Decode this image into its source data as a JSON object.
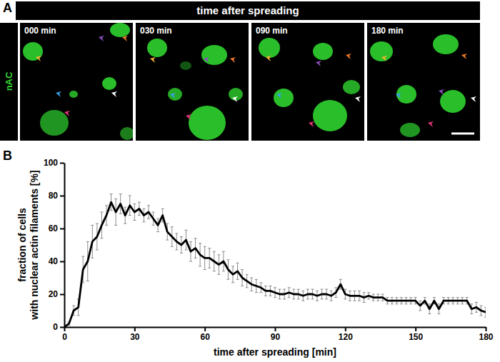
{
  "figure": {
    "panel_a": {
      "label": "A",
      "header": "time after spreading",
      "channel": "nAC",
      "frames": [
        "000 min",
        "030 min",
        "090 min",
        "180 min"
      ]
    },
    "panel_b": {
      "label": "B"
    }
  },
  "chart_data": {
    "type": "line",
    "x_label": "time after spreading [min]",
    "y_label": "fraction of cells\nwith nuclear actin filaments [%]",
    "x": [
      0,
      2,
      4,
      6,
      8,
      10,
      12,
      14,
      16,
      18,
      20,
      22,
      24,
      26,
      28,
      30,
      32,
      34,
      36,
      38,
      40,
      42,
      44,
      46,
      48,
      50,
      52,
      54,
      56,
      58,
      60,
      62,
      64,
      66,
      68,
      70,
      72,
      74,
      76,
      78,
      80,
      82,
      84,
      86,
      88,
      90,
      92,
      94,
      96,
      98,
      100,
      102,
      104,
      106,
      108,
      110,
      112,
      114,
      116,
      118,
      120,
      122,
      124,
      126,
      128,
      130,
      132,
      134,
      136,
      138,
      140,
      142,
      144,
      146,
      148,
      150,
      152,
      154,
      156,
      158,
      160,
      162,
      164,
      166,
      168,
      170,
      172,
      174,
      176,
      178,
      180
    ],
    "xlim": [
      0,
      180
    ],
    "xticks": [
      0,
      30,
      60,
      90,
      120,
      150,
      180
    ],
    "ylim": [
      0,
      100
    ],
    "yticks": [
      0,
      20,
      40,
      60,
      80,
      100
    ],
    "series": [
      {
        "color": "#000000",
        "values": [
          0,
          2,
          10,
          12,
          35,
          40,
          52,
          55,
          62,
          68,
          76,
          70,
          75,
          68,
          74,
          70,
          72,
          68,
          70,
          66,
          62,
          68,
          58,
          55,
          52,
          50,
          53,
          46,
          48,
          44,
          42,
          42,
          40,
          38,
          40,
          35,
          32,
          34,
          30,
          28,
          26,
          25,
          24,
          22,
          22,
          21,
          20,
          20,
          21,
          20,
          20,
          19,
          20,
          20,
          19,
          20,
          20,
          19,
          21,
          26,
          20,
          19,
          19,
          19,
          18,
          19,
          18,
          18,
          18,
          16,
          16,
          16,
          16,
          16,
          16,
          16,
          13,
          16,
          11,
          16,
          11,
          16,
          16,
          16,
          16,
          16,
          16,
          11,
          12,
          10,
          9
        ],
        "errors": [
          0,
          1,
          3,
          5,
          8,
          12,
          10,
          8,
          8,
          6,
          5,
          8,
          6,
          5,
          6,
          5,
          4,
          4,
          4,
          4,
          4,
          4,
          5,
          6,
          5,
          5,
          6,
          6,
          6,
          7,
          7,
          6,
          6,
          6,
          6,
          6,
          5,
          5,
          5,
          4,
          4,
          4,
          3,
          3,
          3,
          3,
          3,
          3,
          3,
          3,
          3,
          3,
          3,
          3,
          3,
          3,
          3,
          3,
          3,
          3,
          3,
          3,
          3,
          3,
          3,
          2,
          2,
          2,
          2,
          2,
          2,
          2,
          2,
          2,
          2,
          2,
          3,
          2,
          3,
          2,
          3,
          2,
          2,
          2,
          2,
          2,
          2,
          3,
          3,
          3,
          3
        ]
      }
    ]
  }
}
